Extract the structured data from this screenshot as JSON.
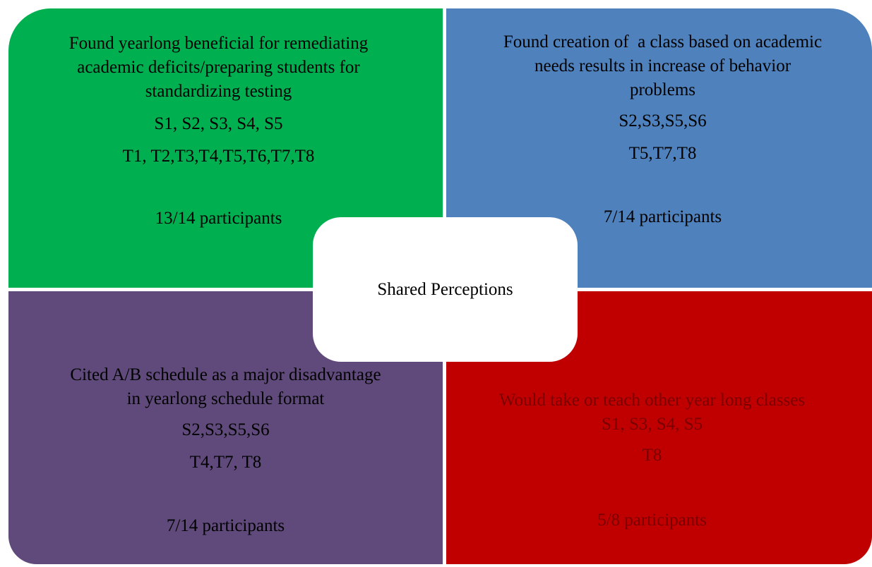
{
  "center": "Shared Perceptions",
  "quadrants": [
    {
      "title_lines": [
        "Found yearlong beneficial for remediating",
        "academic deficits/preparing students for",
        "standardizing testing"
      ],
      "students": "S1, S2, S3, S4, S5",
      "teachers": "T1, T2,T3,T4,T5,T6,T7,T8",
      "participants": "13/14 participants"
    },
    {
      "title_lines": [
        "Found creation of  a class based on academic",
        "needs results in increase of behavior",
        "problems"
      ],
      "students": "S2,S3,S5,S6",
      "teachers": "T5,T7,T8",
      "participants": "7/14 participants"
    },
    {
      "title_lines": [
        "Cited A/B schedule as a major disadvantage",
        "in yearlong schedule format"
      ],
      "students": "S2,S3,S5,S6",
      "teachers": "T4,T7, T8",
      "participants": "7/14 participants"
    },
    {
      "title_lines": [
        "Would take or teach other year long classes"
      ],
      "students": "S1, S3, S4, S5",
      "teachers": "T8",
      "participants": "5/8 participants"
    }
  ]
}
